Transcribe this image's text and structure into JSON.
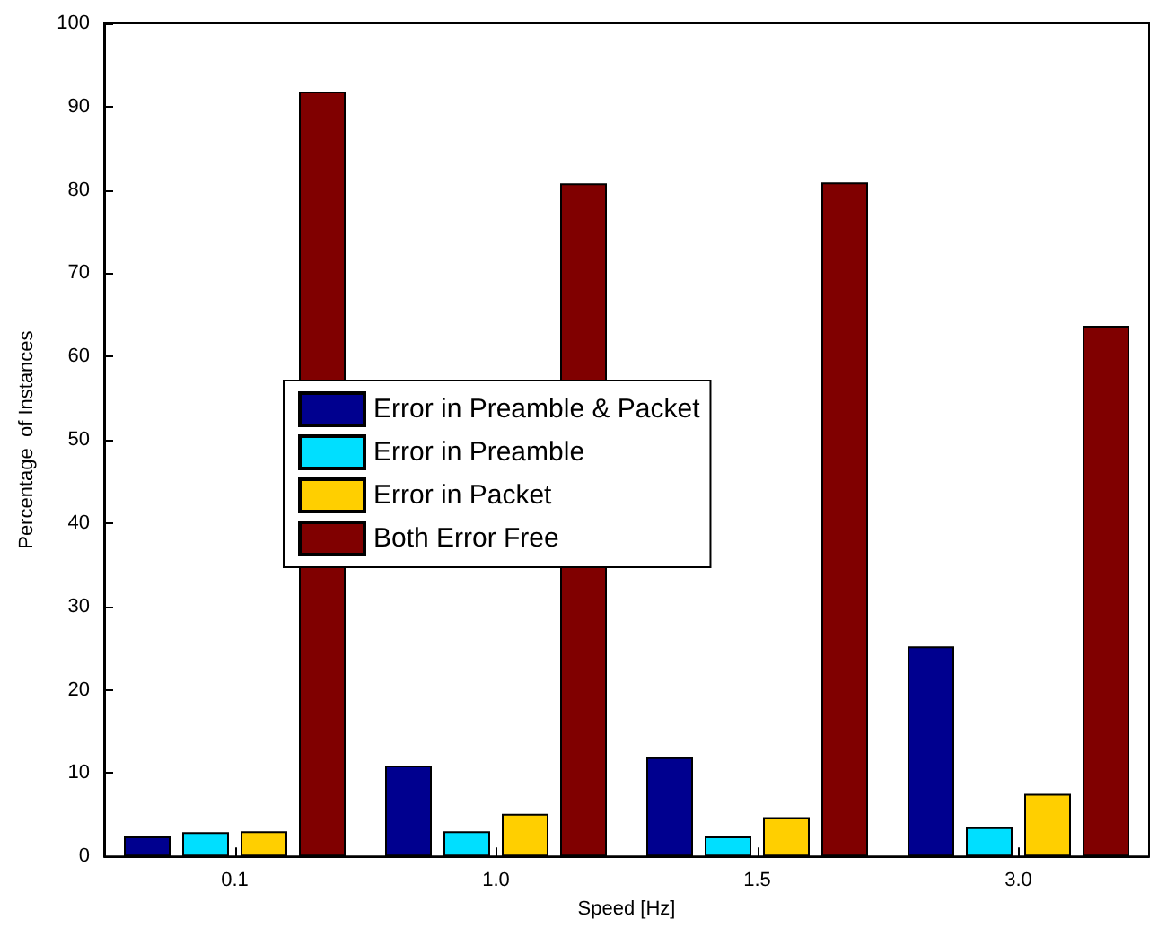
{
  "chart_data": {
    "type": "bar",
    "xlabel": "Speed [Hz]",
    "ylabel": "Percentage  of Instances",
    "categories": [
      "0.1",
      "1.0",
      "1.5",
      "3.0"
    ],
    "series": [
      {
        "name": "Error in Preamble & Packet",
        "color": "#00008f",
        "values": [
          2.4,
          10.9,
          11.9,
          25.2
        ]
      },
      {
        "name": "Error in Preamble",
        "color": "#00dfff",
        "values": [
          2.9,
          3.0,
          2.4,
          3.5
        ]
      },
      {
        "name": "Error in Packet",
        "color": "#ffcf00",
        "values": [
          3.0,
          5.1,
          4.7,
          7.5
        ]
      },
      {
        "name": "Both Error Free",
        "color": "#800000",
        "values": [
          91.8,
          80.8,
          80.9,
          63.7
        ]
      }
    ],
    "ylim": [
      0,
      100
    ],
    "yticks": [
      0,
      10,
      20,
      30,
      40,
      50,
      60,
      70,
      80,
      90,
      100
    ],
    "grid": false,
    "legend": "left"
  }
}
